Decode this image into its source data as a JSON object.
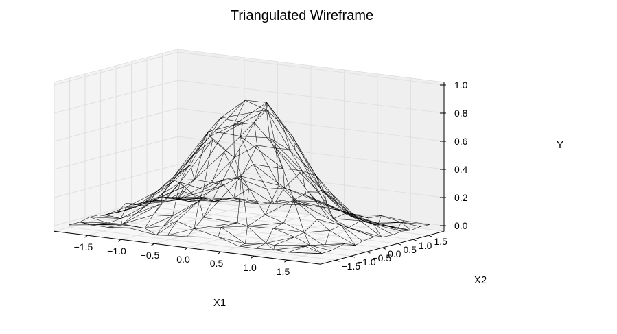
{
  "chart_data": {
    "type": "3d-wireframe",
    "title": "Triangulated Wireframe",
    "xlabel": "X1",
    "ylabel": "X2",
    "zlabel": "Y",
    "x_ticks": [
      "−1.5",
      "−1.0",
      "−0.5",
      "0.0",
      "0.5",
      "1.0",
      "1.5"
    ],
    "y_ticks": [
      "−1.5",
      "−1.0",
      "−0.5",
      "0.0",
      "0.5",
      "1.0",
      "1.5"
    ],
    "z_ticks": [
      "0.0",
      "0.2",
      "0.4",
      "0.6",
      "0.8",
      "1.0"
    ],
    "x_tick_values": [
      -1.5,
      -1.0,
      -0.5,
      0.0,
      0.5,
      1.0,
      1.5
    ],
    "y_tick_values": [
      -1.5,
      -1.0,
      -0.5,
      0.0,
      0.5,
      1.0,
      1.5
    ],
    "z_tick_values": [
      0.0,
      0.2,
      0.4,
      0.6,
      0.8,
      1.0
    ],
    "xlim": [
      -2,
      2
    ],
    "ylim": [
      -2,
      2
    ],
    "zlim": [
      0,
      1.0
    ],
    "surface": "peak near x1=0, x2=0 with Y≈0.9, falling to Y≈0 at the edges",
    "grid": true
  },
  "colors": {
    "mesh": "#000000",
    "pane_left": "#f4f4f4",
    "pane_back": "#efefef",
    "pane_floor": "#f7f7f7",
    "grid": "#e0e0e0"
  }
}
